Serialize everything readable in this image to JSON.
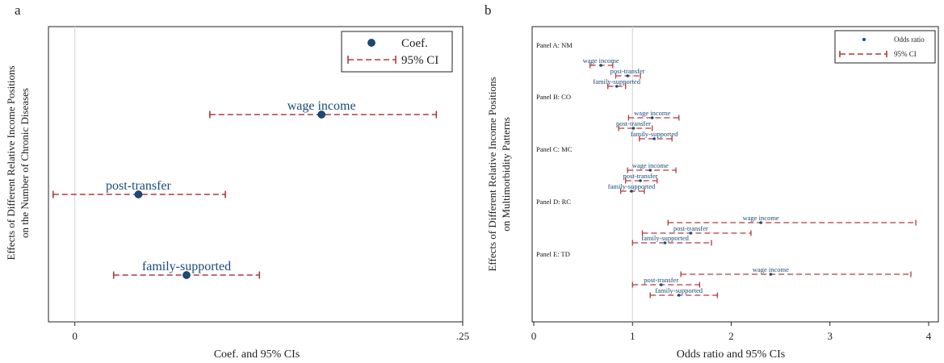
{
  "colors": {
    "point": "#1a4a7a",
    "ci": "#b03a3a",
    "label": "#1a4a7a",
    "axis": "#222222",
    "refline": "#d8d8d8"
  },
  "chart_data": [
    {
      "panel_letter": "a",
      "type": "scatter",
      "subtype": "coefficient-plot",
      "xlabel": "Coef. and 95% CIs",
      "ylabel": [
        "Effects of Different Relative Income Positions",
        "on the Number of Chronic Diseases"
      ],
      "xlim": [
        -0.017,
        0.25
      ],
      "xticks": [
        0,
        0.25
      ],
      "xtick_labels": [
        "0",
        ".25"
      ],
      "reference_line": 0,
      "legend": {
        "position": "top-right",
        "items": [
          "Coef.",
          "95% CI"
        ]
      },
      "series": [
        {
          "label": "wage income",
          "coef": 0.159,
          "ci": [
            0.087,
            0.233
          ]
        },
        {
          "label": "post-transfer",
          "coef": 0.041,
          "ci": [
            -0.014,
            0.097
          ]
        },
        {
          "label": "family-supported",
          "coef": 0.072,
          "ci": [
            0.025,
            0.119
          ]
        }
      ]
    },
    {
      "panel_letter": "b",
      "type": "scatter",
      "subtype": "coefficient-plot",
      "xlabel": "Odds ratio and 95% CIs",
      "ylabel": [
        "Effects of Different Relative Income Positions",
        "on Multimorbidity Patterns"
      ],
      "xlim": [
        0,
        4
      ],
      "xticks": [
        0,
        1,
        2,
        3,
        4
      ],
      "xtick_labels": [
        "0",
        "1",
        "2",
        "3",
        "4"
      ],
      "reference_line": 1,
      "legend": {
        "position": "top-right",
        "items": [
          "Odds ratio",
          "95% CI"
        ]
      },
      "panels": [
        {
          "title": "Panel A: NM",
          "series": [
            {
              "label": "wage income",
              "coef": 0.68,
              "ci": [
                0.57,
                0.8
              ]
            },
            {
              "label": "post-transfer",
              "coef": 0.95,
              "ci": [
                0.83,
                1.08
              ]
            },
            {
              "label": "family-supported",
              "coef": 0.84,
              "ci": [
                0.75,
                0.93
              ]
            }
          ]
        },
        {
          "title": "Panel B: CO",
          "series": [
            {
              "label": "wage income",
              "coef": 1.2,
              "ci": [
                0.96,
                1.47
              ]
            },
            {
              "label": "post-transfer",
              "coef": 1.01,
              "ci": [
                0.86,
                1.2
              ]
            },
            {
              "label": "family-supported",
              "coef": 1.22,
              "ci": [
                1.07,
                1.4
              ]
            }
          ]
        },
        {
          "title": "Panel C: MC",
          "series": [
            {
              "label": "wage income",
              "coef": 1.18,
              "ci": [
                0.95,
                1.44
              ]
            },
            {
              "label": "post-transfer",
              "coef": 1.08,
              "ci": [
                0.93,
                1.25
              ]
            },
            {
              "label": "family-supported",
              "coef": 0.99,
              "ci": [
                0.88,
                1.12
              ]
            }
          ]
        },
        {
          "title": "Panel D: RC",
          "series": [
            {
              "label": "wage income",
              "coef": 2.3,
              "ci": [
                1.36,
                3.87
              ]
            },
            {
              "label": "post-transfer",
              "coef": 1.59,
              "ci": [
                1.1,
                2.2
              ]
            },
            {
              "label": "family-supported",
              "coef": 1.33,
              "ci": [
                1.0,
                1.8
              ]
            }
          ]
        },
        {
          "title": "Panel E: TD",
          "series": [
            {
              "label": "wage income",
              "coef": 2.4,
              "ci": [
                1.49,
                3.82
              ]
            },
            {
              "label": "post-transfer",
              "coef": 1.29,
              "ci": [
                1.0,
                1.68
              ]
            },
            {
              "label": "family-supported",
              "coef": 1.47,
              "ci": [
                1.18,
                1.86
              ]
            }
          ]
        }
      ]
    }
  ]
}
